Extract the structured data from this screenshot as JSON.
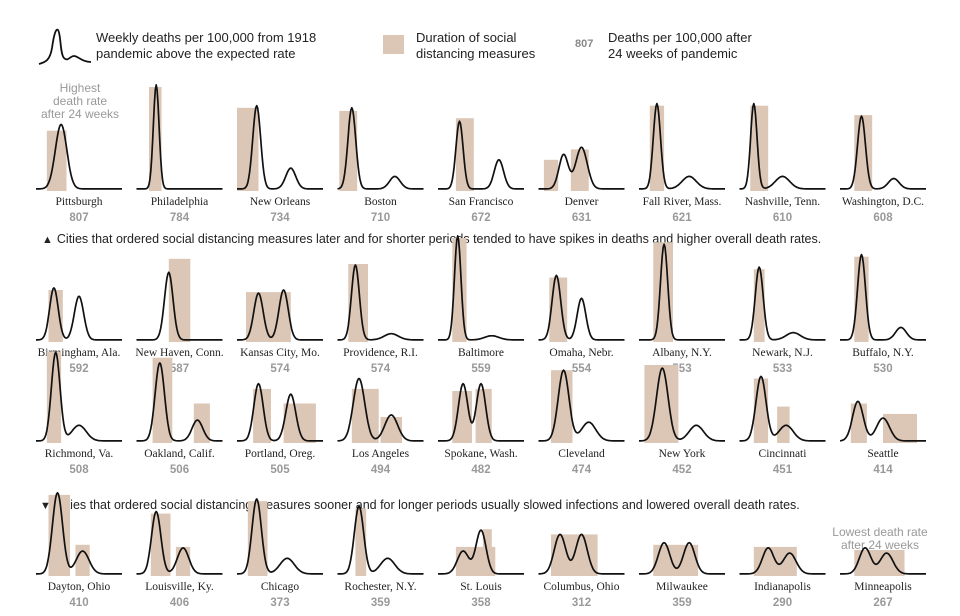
{
  "legend": {
    "line_label_1": "Weekly deaths per 100,000 from 1918",
    "line_label_2": "pandemic above the expected rate",
    "box_label_1": "Duration of social",
    "box_label_2": "distancing measures",
    "num_sample": "807",
    "num_label_1": "Deaths per 100,000 after",
    "num_label_2": "24 weeks of pandemic"
  },
  "notes": {
    "highest_1": "Highest",
    "highest_2": "death rate",
    "highest_3": "after 24 weeks",
    "lowest_1": "Lowest death rate",
    "lowest_2": "after 24 weeks"
  },
  "captions": {
    "up_arrow": "▲",
    "up_text": "Cities that ordered social distancing measures later and for shorter periods tended to have spikes in deaths and higher overall death rates.",
    "down_arrow": "▼",
    "down_text": "Cities that ordered social distancing measures sooner and for longer periods usually slowed infections and lowered overall death rates."
  },
  "colors": {
    "line": "#111111",
    "distancing": "#dcc6b5",
    "value": "#999999"
  },
  "chart_data": {
    "type": "line",
    "weeks": 24,
    "cities": [
      {
        "name": "Pittsburgh",
        "value": 807,
        "peaks": [
          {
            "w": 7,
            "h": 0.62,
            "s": 1.6
          }
        ],
        "bands": [
          [
            3,
            8.5,
            0.58
          ]
        ]
      },
      {
        "name": "Philadelphia",
        "value": 784,
        "peaks": [
          {
            "w": 5.5,
            "h": 1.0,
            "s": 0.8
          }
        ],
        "bands": [
          [
            3.5,
            7,
            1.0
          ]
        ]
      },
      {
        "name": "New Orleans",
        "value": 734,
        "peaks": [
          {
            "w": 5.5,
            "h": 0.8,
            "s": 1.1
          },
          {
            "w": 15,
            "h": 0.2,
            "s": 1.4
          }
        ],
        "bands": [
          [
            0,
            6,
            0.8
          ]
        ]
      },
      {
        "name": "Boston",
        "value": 710,
        "peaks": [
          {
            "w": 4,
            "h": 0.78,
            "s": 1.1
          },
          {
            "w": 16,
            "h": 0.12,
            "s": 1.5
          }
        ],
        "bands": [
          [
            0.5,
            5.5,
            0.77
          ]
        ]
      },
      {
        "name": "San Francisco",
        "value": 672,
        "peaks": [
          {
            "w": 6,
            "h": 0.65,
            "s": 1.0
          },
          {
            "w": 17,
            "h": 0.28,
            "s": 1.3
          }
        ],
        "bands": [
          [
            5,
            10,
            0.7
          ]
        ]
      },
      {
        "name": "Denver",
        "value": 631,
        "peaks": [
          {
            "w": 7,
            "h": 0.33,
            "s": 1.3
          },
          {
            "w": 12,
            "h": 0.4,
            "s": 1.6
          }
        ],
        "bands": [
          [
            1.5,
            5.5,
            0.3
          ],
          [
            9,
            14,
            0.4
          ]
        ]
      },
      {
        "name": "Fall River, Mass.",
        "value": 621,
        "peaks": [
          {
            "w": 5,
            "h": 0.82,
            "s": 1.0
          },
          {
            "w": 14,
            "h": 0.12,
            "s": 2.0
          }
        ],
        "bands": [
          [
            3,
            7,
            0.82
          ]
        ]
      },
      {
        "name": "Nashville, Tenn.",
        "value": 610,
        "peaks": [
          {
            "w": 4,
            "h": 0.82,
            "s": 0.9
          },
          {
            "w": 12,
            "h": 0.12,
            "s": 2.0
          }
        ],
        "bands": [
          [
            3,
            8,
            0.82
          ]
        ]
      },
      {
        "name": "Washington, D.C.",
        "value": 608,
        "peaks": [
          {
            "w": 6,
            "h": 0.7,
            "s": 1.1
          },
          {
            "w": 15,
            "h": 0.1,
            "s": 1.5
          }
        ],
        "bands": [
          [
            4,
            9,
            0.73
          ]
        ]
      },
      {
        "name": "Birmingham, Ala.",
        "value": 592,
        "peaks": [
          {
            "w": 5,
            "h": 0.5,
            "s": 1.2
          },
          {
            "w": 12,
            "h": 0.42,
            "s": 1.3
          }
        ],
        "bands": [
          [
            3.5,
            7.5,
            0.5
          ]
        ]
      },
      {
        "name": "New Haven, Conn.",
        "value": 587,
        "peaks": [
          {
            "w": 9,
            "h": 0.65,
            "s": 1.2
          }
        ],
        "bands": [
          [
            9,
            15,
            0.8
          ]
        ]
      },
      {
        "name": "Kansas City, Mo.",
        "value": 574,
        "peaks": [
          {
            "w": 6,
            "h": 0.45,
            "s": 1.3
          },
          {
            "w": 13,
            "h": 0.48,
            "s": 1.3
          }
        ],
        "bands": [
          [
            2.5,
            15,
            0.48
          ]
        ]
      },
      {
        "name": "Providence, R.I.",
        "value": 574,
        "peaks": [
          {
            "w": 5,
            "h": 0.72,
            "s": 1.1
          },
          {
            "w": 15,
            "h": 0.06,
            "s": 2.0
          }
        ],
        "bands": [
          [
            3,
            8.5,
            0.75
          ]
        ]
      },
      {
        "name": "Baltimore",
        "value": 559,
        "peaks": [
          {
            "w": 5.5,
            "h": 1.0,
            "s": 0.9
          },
          {
            "w": 15,
            "h": 0.04,
            "s": 2.0
          }
        ],
        "bands": [
          [
            4,
            8,
            1.0
          ]
        ]
      },
      {
        "name": "Omaha, Nebr.",
        "value": 554,
        "peaks": [
          {
            "w": 5,
            "h": 0.62,
            "s": 1.2
          },
          {
            "w": 12,
            "h": 0.4,
            "s": 1.2
          }
        ],
        "bands": [
          [
            3,
            8,
            0.62
          ]
        ]
      },
      {
        "name": "Albany, N.Y.",
        "value": 553,
        "peaks": [
          {
            "w": 7,
            "h": 0.92,
            "s": 1.0
          }
        ],
        "bands": [
          [
            4,
            9.5,
            0.96
          ]
        ]
      },
      {
        "name": "Newark, N.J.",
        "value": 533,
        "peaks": [
          {
            "w": 5.5,
            "h": 0.7,
            "s": 1.1
          },
          {
            "w": 15,
            "h": 0.07,
            "s": 2.0
          }
        ],
        "bands": [
          [
            4,
            7,
            0.7
          ]
        ]
      },
      {
        "name": "Buffalo, N.Y.",
        "value": 530,
        "peaks": [
          {
            "w": 6,
            "h": 0.82,
            "s": 1.1
          },
          {
            "w": 17,
            "h": 0.12,
            "s": 1.5
          }
        ],
        "bands": [
          [
            4,
            8,
            0.82
          ]
        ]
      },
      {
        "name": "Richmond, Va.",
        "value": 508,
        "peaks": [
          {
            "w": 5.5,
            "h": 0.85,
            "s": 1.2
          },
          {
            "w": 12,
            "h": 0.15,
            "s": 2.0
          }
        ],
        "bands": [
          [
            3,
            7,
            0.88
          ]
        ]
      },
      {
        "name": "Oakland, Calif.",
        "value": 506,
        "peaks": [
          {
            "w": 6.5,
            "h": 0.75,
            "s": 1.3
          },
          {
            "w": 17,
            "h": 0.2,
            "s": 1.5
          }
        ],
        "bands": [
          [
            4.5,
            10,
            0.82
          ],
          [
            16,
            20.5,
            0.38
          ]
        ]
      },
      {
        "name": "Portland, Oreg.",
        "value": 505,
        "peaks": [
          {
            "w": 6,
            "h": 0.55,
            "s": 1.3
          },
          {
            "w": 15,
            "h": 0.45,
            "s": 1.4
          }
        ],
        "bands": [
          [
            4.5,
            9.5,
            0.52
          ],
          [
            13,
            22,
            0.38
          ]
        ]
      },
      {
        "name": "Los Angeles",
        "value": 494,
        "peaks": [
          {
            "w": 6,
            "h": 0.6,
            "s": 1.6
          },
          {
            "w": 15,
            "h": 0.25,
            "s": 1.8
          }
        ],
        "bands": [
          [
            4,
            11.5,
            0.52
          ],
          [
            12,
            18,
            0.25
          ]
        ]
      },
      {
        "name": "Spokane, Wash.",
        "value": 482,
        "peaks": [
          {
            "w": 7,
            "h": 0.55,
            "s": 1.3
          },
          {
            "w": 12,
            "h": 0.55,
            "s": 1.3
          }
        ],
        "bands": [
          [
            4,
            9.5,
            0.5
          ],
          [
            10.5,
            15,
            0.52
          ]
        ]
      },
      {
        "name": "Cleveland",
        "value": 474,
        "peaks": [
          {
            "w": 7,
            "h": 0.68,
            "s": 1.5
          },
          {
            "w": 14,
            "h": 0.18,
            "s": 2.0
          }
        ],
        "bands": [
          [
            3.5,
            9.5,
            0.7
          ]
        ]
      },
      {
        "name": "New York",
        "value": 452,
        "peaks": [
          {
            "w": 6.5,
            "h": 0.7,
            "s": 1.6
          },
          {
            "w": 16,
            "h": 0.15,
            "s": 2.0
          }
        ],
        "bands": [
          [
            1.5,
            11,
            0.75
          ]
        ]
      },
      {
        "name": "Cincinnati",
        "value": 451,
        "peaks": [
          {
            "w": 6,
            "h": 0.62,
            "s": 1.4
          },
          {
            "w": 13,
            "h": 0.15,
            "s": 2.0
          }
        ],
        "bands": [
          [
            4,
            8,
            0.62
          ],
          [
            10.5,
            14,
            0.35
          ]
        ]
      },
      {
        "name": "Seattle",
        "value": 414,
        "peaks": [
          {
            "w": 5,
            "h": 0.38,
            "s": 1.5
          },
          {
            "w": 12,
            "h": 0.22,
            "s": 1.8
          }
        ],
        "bands": [
          [
            3,
            7.5,
            0.38
          ],
          [
            12,
            21.5,
            0.28
          ]
        ]
      },
      {
        "name": "Dayton, Ohio",
        "value": 410,
        "peaks": [
          {
            "w": 6,
            "h": 0.78,
            "s": 1.4
          },
          {
            "w": 13,
            "h": 0.22,
            "s": 1.8
          }
        ],
        "bands": [
          [
            3.5,
            9.5,
            0.78
          ],
          [
            11,
            15,
            0.3
          ]
        ]
      },
      {
        "name": "Louisville, Ky.",
        "value": 406,
        "peaks": [
          {
            "w": 5.5,
            "h": 0.6,
            "s": 1.3
          },
          {
            "w": 13,
            "h": 0.25,
            "s": 1.6
          }
        ],
        "bands": [
          [
            4,
            9.5,
            0.6
          ],
          [
            11,
            15,
            0.28
          ]
        ]
      },
      {
        "name": "Chicago",
        "value": 373,
        "peaks": [
          {
            "w": 5.5,
            "h": 0.72,
            "s": 1.3
          },
          {
            "w": 14,
            "h": 0.15,
            "s": 2.0
          }
        ],
        "bands": [
          [
            3,
            8.5,
            0.72
          ]
        ]
      },
      {
        "name": "Rochester, N.Y.",
        "value": 359,
        "peaks": [
          {
            "w": 6,
            "h": 0.65,
            "s": 1.3
          },
          {
            "w": 14,
            "h": 0.15,
            "s": 2.0
          }
        ],
        "bands": [
          [
            5,
            8,
            0.65
          ]
        ]
      },
      {
        "name": "St. Louis",
        "value": 358,
        "peaks": [
          {
            "w": 7,
            "h": 0.22,
            "s": 1.6
          },
          {
            "w": 12,
            "h": 0.42,
            "s": 1.4
          }
        ],
        "bands": [
          [
            5,
            16,
            0.28
          ],
          [
            12.5,
            15,
            0.45
          ]
        ]
      },
      {
        "name": "Columbus, Ohio",
        "value": 312,
        "peaks": [
          {
            "w": 6,
            "h": 0.38,
            "s": 1.6
          },
          {
            "w": 12,
            "h": 0.38,
            "s": 1.6
          }
        ],
        "bands": [
          [
            3.5,
            16.5,
            0.4
          ]
        ]
      },
      {
        "name": "Milwaukee",
        "value": 359,
        "peaks": [
          {
            "w": 7,
            "h": 0.3,
            "s": 1.6
          },
          {
            "w": 14,
            "h": 0.3,
            "s": 1.6
          }
        ],
        "bands": [
          [
            4,
            16.5,
            0.3
          ]
        ]
      },
      {
        "name": "Indianapolis",
        "value": 290,
        "peaks": [
          {
            "w": 8,
            "h": 0.25,
            "s": 1.6
          },
          {
            "w": 14,
            "h": 0.2,
            "s": 1.8
          }
        ],
        "bands": [
          [
            4,
            16,
            0.28
          ]
        ]
      },
      {
        "name": "Minneapolis",
        "value": 267,
        "peaks": [
          {
            "w": 7,
            "h": 0.25,
            "s": 1.6
          },
          {
            "w": 13,
            "h": 0.2,
            "s": 1.8
          }
        ],
        "bands": [
          [
            4,
            18,
            0.25
          ]
        ]
      }
    ]
  }
}
